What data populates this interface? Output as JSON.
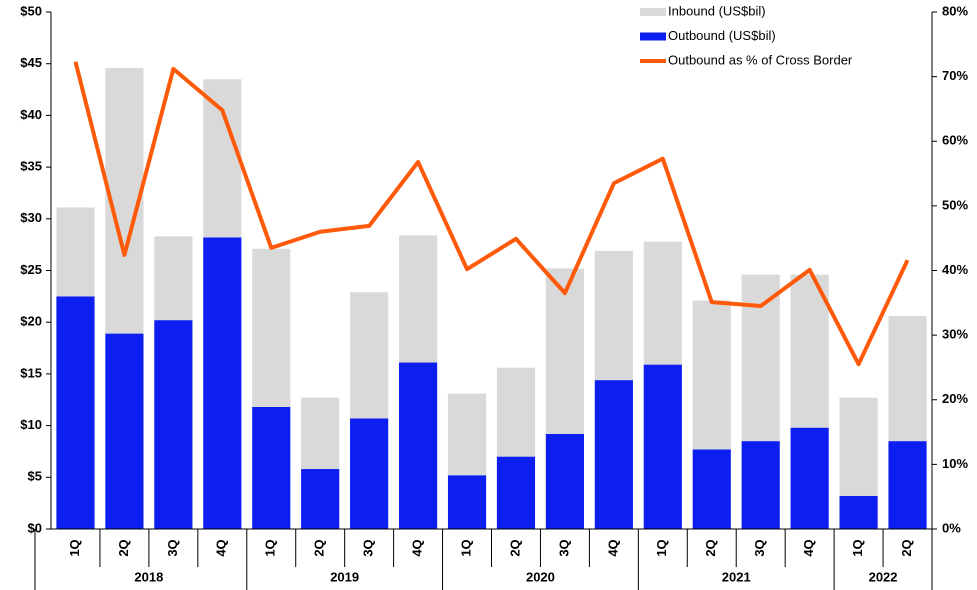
{
  "chart_data": {
    "type": "bar",
    "groups": [
      {
        "label": "2018",
        "categories": [
          "1Q",
          "2Q",
          "3Q",
          "4Q"
        ]
      },
      {
        "label": "2019",
        "categories": [
          "1Q",
          "2Q",
          "3Q",
          "4Q"
        ]
      },
      {
        "label": "2020",
        "categories": [
          "1Q",
          "2Q",
          "3Q",
          "4Q"
        ]
      },
      {
        "label": "2021",
        "categories": [
          "1Q",
          "2Q",
          "3Q",
          "4Q"
        ]
      },
      {
        "label": "2022",
        "categories": [
          "1Q",
          "2Q"
        ]
      }
    ],
    "series": [
      {
        "name": "Outbound (US$bil)",
        "color": "#0d1ff0",
        "stack": true,
        "values": [
          22.5,
          18.9,
          20.2,
          28.2,
          11.8,
          5.8,
          10.7,
          16.1,
          5.2,
          7.0,
          9.2,
          14.4,
          15.9,
          7.7,
          8.5,
          9.8,
          3.2,
          8.5
        ]
      },
      {
        "name": "Inbound (US$bil)",
        "color": "#d9d9d9",
        "stack": true,
        "values": [
          8.6,
          25.7,
          8.1,
          15.3,
          15.3,
          6.9,
          12.2,
          12.3,
          7.9,
          8.6,
          16.0,
          12.5,
          11.9,
          14.4,
          16.1,
          14.8,
          9.5,
          12.1
        ]
      },
      {
        "name": "Outbound as % of Cross Border",
        "color": "#ff5a0a",
        "type": "line",
        "axis": "y2",
        "values": [
          72.3,
          42.4,
          71.2,
          64.8,
          43.5,
          46.0,
          46.9,
          56.8,
          40.2,
          44.9,
          36.5,
          53.5,
          57.3,
          35.1,
          34.5,
          40.1,
          25.5,
          41.6
        ]
      }
    ],
    "legend_order": [
      1,
      0,
      2
    ],
    "legend": "top-right",
    "ylim": [
      0,
      50
    ],
    "yticks": [
      {
        "value": 0,
        "label": "$0"
      },
      {
        "value": 5,
        "label": "$5"
      },
      {
        "value": 10,
        "label": "$10"
      },
      {
        "value": 15,
        "label": "$15"
      },
      {
        "value": 20,
        "label": "$20"
      },
      {
        "value": 25,
        "label": "$25"
      },
      {
        "value": 30,
        "label": "$30"
      },
      {
        "value": 35,
        "label": "$35"
      },
      {
        "value": 40,
        "label": "$40"
      },
      {
        "value": 45,
        "label": "$45"
      },
      {
        "value": 50,
        "label": "$50"
      }
    ],
    "y2lim": [
      0,
      80
    ],
    "y2ticks": [
      {
        "value": 0,
        "label": "0%"
      },
      {
        "value": 10,
        "label": "10%"
      },
      {
        "value": 20,
        "label": "20%"
      },
      {
        "value": 30,
        "label": "30%"
      },
      {
        "value": 40,
        "label": "40%"
      },
      {
        "value": 50,
        "label": "50%"
      },
      {
        "value": 60,
        "label": "60%"
      },
      {
        "value": 70,
        "label": "70%"
      },
      {
        "value": 80,
        "label": "80%"
      }
    ]
  }
}
